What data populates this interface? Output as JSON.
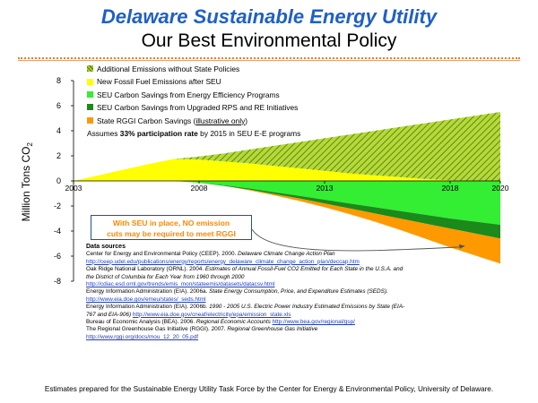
{
  "slide": {
    "title": "Delaware Sustainable Energy Utility",
    "subtitle": "Our Best Environmental Policy",
    "y_axis_label_main": "Million Tons CO",
    "y_axis_label_sub": "2",
    "callout_line1": "With SEU in place, NO emission",
    "callout_line2": "cuts may be required to meet RGGI",
    "footer": "Estimates prepared for the Sustainable Energy Utility Task Force by the Center for Energy & Environmental Policy, University of Delaware."
  },
  "chart_data": {
    "type": "area",
    "x_tick_labels": [
      "2003",
      "2008",
      "2013",
      "2018",
      "2020"
    ],
    "y_tick_labels": [
      "8",
      "6",
      "4",
      "2",
      "0",
      "-2",
      "-4",
      "-6",
      "-8"
    ],
    "ylim": [
      -8,
      8
    ],
    "xlim": [
      2003,
      2020
    ],
    "legend": [
      {
        "label": "Additional Emissions without State Policies",
        "color": "#9acd32",
        "pattern": "hatched"
      },
      {
        "label": "New Fossil Fuel Emissions after SEU",
        "color": "#ffff00"
      },
      {
        "label": "SEU Carbon Savings from Energy Efficiency Programs",
        "color": "#33ee33"
      },
      {
        "label": "SEU Carbon Savings from Upgraded RPS and RE Initiatives",
        "color": "#1a8a1a"
      },
      {
        "label_prefix": "State RGGI Carbon Savings (",
        "label_link": "illustrative only",
        "label_suffix": ")",
        "color": "#ff9900"
      }
    ],
    "legend_note_prefix": "Assumes ",
    "legend_note_bold": "33% participation rate",
    "legend_note_suffix": " by 2015 in SEU E-E programs",
    "x": [
      2003,
      2004,
      2005,
      2006,
      2007,
      2008,
      2009,
      2010,
      2011,
      2012,
      2013,
      2014,
      2015,
      2016,
      2017,
      2018,
      2019,
      2020
    ],
    "series": [
      {
        "name": "New Fossil Fuel Emissions after SEU",
        "color": "#ffff00",
        "lower": [
          0,
          0,
          0,
          0,
          0,
          0,
          0,
          0,
          0,
          0,
          0,
          0,
          0,
          0,
          0,
          0,
          0,
          0
        ],
        "upper": [
          0,
          0.45,
          0.9,
          1.35,
          1.75,
          1.7,
          1.55,
          1.4,
          1.2,
          1.0,
          0.8,
          0.6,
          0.45,
          0.3,
          0.15,
          0.05,
          0.0,
          0.0
        ]
      },
      {
        "name": "Additional Emissions without State Policies",
        "color": "#9acd32",
        "pattern": "hatched",
        "lower": [
          0,
          0.45,
          0.9,
          1.35,
          1.75,
          1.7,
          1.55,
          1.4,
          1.2,
          1.0,
          0.8,
          0.6,
          0.45,
          0.3,
          0.15,
          0.05,
          0.0,
          0.0
        ],
        "upper": [
          0,
          0.45,
          0.9,
          1.35,
          1.75,
          1.95,
          2.2,
          2.5,
          2.8,
          3.1,
          3.4,
          3.7,
          4.0,
          4.3,
          4.6,
          4.9,
          5.2,
          5.5
        ]
      },
      {
        "name": "SEU Carbon Savings from Energy Efficiency Programs",
        "color": "#33ee33",
        "lower": [
          0,
          0,
          0,
          0,
          0,
          -0.15,
          -0.35,
          -0.6,
          -0.9,
          -1.2,
          -1.5,
          -1.8,
          -2.1,
          -2.4,
          -2.7,
          -3.0,
          -3.25,
          -3.5
        ],
        "upper": [
          0,
          0,
          0,
          0,
          0,
          0,
          0,
          0,
          0,
          0,
          0,
          0,
          0,
          0,
          0,
          0,
          0,
          0
        ]
      },
      {
        "name": "SEU Carbon Savings from Upgraded RPS and RE Initiatives",
        "color": "#1a8a1a",
        "lower": [
          0,
          0,
          0,
          0,
          0,
          -0.15,
          -0.4,
          -0.7,
          -1.05,
          -1.4,
          -1.8,
          -2.2,
          -2.6,
          -3.0,
          -3.4,
          -3.8,
          -4.2,
          -4.6
        ],
        "upper": [
          0,
          0,
          0,
          0,
          0,
          -0.15,
          -0.35,
          -0.6,
          -0.9,
          -1.2,
          -1.5,
          -1.8,
          -2.1,
          -2.4,
          -2.7,
          -3.0,
          -3.25,
          -3.5
        ]
      },
      {
        "name": "State RGGI Carbon Savings (illustrative only)",
        "color": "#ff9900",
        "lower": [
          0,
          0,
          0,
          0,
          0,
          -0.15,
          -0.4,
          -0.75,
          -1.15,
          -1.6,
          -2.1,
          -2.65,
          -3.25,
          -3.9,
          -4.6,
          -5.3,
          -5.95,
          -6.6
        ],
        "upper": [
          0,
          0,
          0,
          0,
          0,
          -0.15,
          -0.4,
          -0.7,
          -1.05,
          -1.4,
          -1.8,
          -2.2,
          -2.6,
          -3.0,
          -3.4,
          -3.8,
          -4.2,
          -4.6
        ]
      }
    ]
  },
  "sources": {
    "header": "Data sources",
    "lines": [
      {
        "plain": "Center for Energy and Environmental Policy (CEEP). 2000. ",
        "italic": "Delaware Climate Change Action Plan"
      },
      {
        "link": "http://ceep.udel.edu/publications/energy/reports/energy_delaware_climate_change_action_plan/deccap.htm"
      },
      {
        "plain": "Oak Ridge National Laboratory (ORNL). 2004. ",
        "italic": "Estimates of Annual Fossil-Fuel CO2 Emitted for Each State in the U.S.A. and"
      },
      {
        "italic": "the District of Columbia for Each Year from 1960 through 2000"
      },
      {
        "link": "http://cdiac.esd.ornl.gov/trends/emis_mon/stateemis/datasets/datacsv.html"
      },
      {
        "plain": "Energy Information Administration (EIA). 2006a. ",
        "italic": "State Energy Consumption, Price, and Expenditure Estimates (SEDS)."
      },
      {
        "link": "http://www.eia.doe.gov/emeu/states/_seds.html"
      },
      {
        "plain": "Energy Information Administration (EIA). 2006b. ",
        "italic": "1990 - 2005 U.S. Electric Power Industry Estimated Emissions by State (EIA-"
      },
      {
        "italic": "767 and EIA-906) ",
        "link": "http://www.eia.doe.gov/cneaf/electricity/epa/emission_state.xls"
      },
      {
        "plain": "Bureau of Economic Analysis (BEA). 2006. ",
        "italic": "Regional Economic Accounts ",
        "link": "http://www.bea.gov/regional/gsp/"
      },
      {
        "plain": "The Regional Greenhouse Gas Initiative (RGGI). 2007. ",
        "italic": "Regional Greenhouse Gas Initiative"
      },
      {
        "link": "http://www.rggi.org/docs/mou_12_20_05.pdf"
      }
    ]
  }
}
